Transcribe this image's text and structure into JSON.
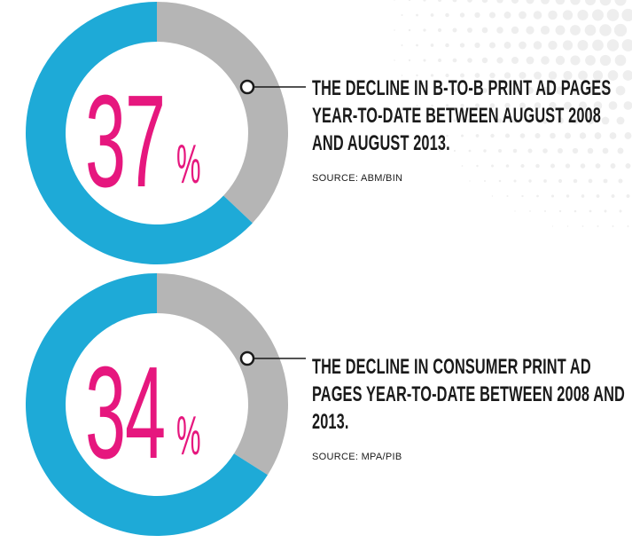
{
  "colors": {
    "blue": "#1eaad7",
    "gray": "#b5b5b5",
    "magenta": "#e6177e",
    "text": "#1a1a1a"
  },
  "chart_data": [
    {
      "type": "pie",
      "value": 37,
      "unit": "%",
      "slices": [
        {
          "label": "decline",
          "value": 37,
          "color": "#b5b5b5"
        },
        {
          "label": "remainder",
          "value": 63,
          "color": "#1eaad7"
        }
      ],
      "caption": "THE DECLINE IN B-TO-B PRINT AD PAGES YEAR-TO-DATE BETWEEN AUGUST 2008 AND AUGUST 2013.",
      "source": "SOURCE: ABM/BIN"
    },
    {
      "type": "pie",
      "value": 34,
      "unit": "%",
      "slices": [
        {
          "label": "decline",
          "value": 34,
          "color": "#b5b5b5"
        },
        {
          "label": "remainder",
          "value": 66,
          "color": "#1eaad7"
        }
      ],
      "caption": "THE DECLINE IN CONSUMER PRINT AD PAGES YEAR-TO-DATE BETWEEN 2008 AND 2013.",
      "source": "SOURCE: MPA/PIB"
    }
  ]
}
